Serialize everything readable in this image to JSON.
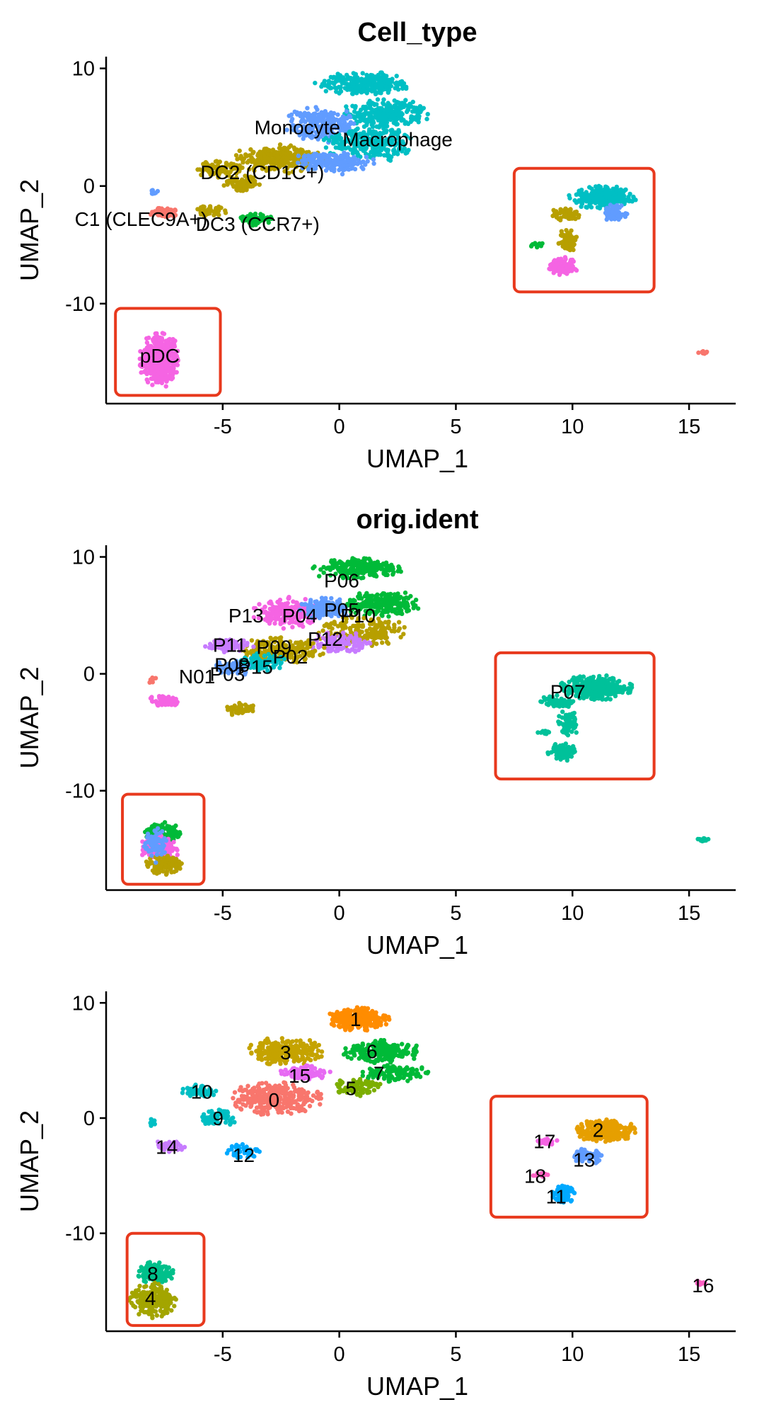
{
  "highlight_color": "#E8391D",
  "chart_data": [
    {
      "type": "scatter",
      "title": "Cell_type",
      "xlabel": "UMAP_1",
      "ylabel": "UMAP_2",
      "xlim": [
        -10,
        17
      ],
      "ylim": [
        -18.5,
        11
      ],
      "xticks": [
        -5,
        0,
        5,
        10,
        15
      ],
      "yticks": [
        10,
        0,
        -10
      ],
      "xtick_labels": [
        "-5",
        "0",
        "5",
        "10",
        "15"
      ],
      "ytick_labels": [
        "10",
        "0",
        "-10"
      ],
      "highlight_boxes": [
        {
          "x": [
            7.5,
            13.5
          ],
          "y": [
            -9,
            1.5
          ]
        },
        {
          "x": [
            -9.6,
            -5.1
          ],
          "y": [
            -17.8,
            -10.4
          ]
        }
      ],
      "labels": [
        {
          "text": "Monocyte",
          "x": -1.8,
          "y": 5
        },
        {
          "text": "Macrophage",
          "x": 2.5,
          "y": 4
        },
        {
          "text": "DC2 (CD1C+)",
          "x": -3.3,
          "y": 1.2
        },
        {
          "text": "C1 (CLEC9A+)",
          "x": -8.5,
          "y": -2.8
        },
        {
          "text": "DC3 (CCR7+)",
          "x": -3.5,
          "y": -3.2
        },
        {
          "text": "pDC",
          "x": -7.7,
          "y": -14.4
        }
      ],
      "clusters": [
        {
          "x": 1.0,
          "y": 8.7,
          "rx": 1.8,
          "ry": 0.9,
          "n": 260,
          "color": "#00BFC4"
        },
        {
          "x": 2.0,
          "y": 6.2,
          "rx": 1.7,
          "ry": 1.1,
          "n": 260,
          "color": "#00BFC4"
        },
        {
          "x": -0.8,
          "y": 5.2,
          "rx": 1.5,
          "ry": 1.4,
          "n": 240,
          "color": "#619CFF"
        },
        {
          "x": 1.3,
          "y": 3.6,
          "rx": 1.8,
          "ry": 1.4,
          "n": 260,
          "color": "#00BFC4"
        },
        {
          "x": -2.6,
          "y": 2.3,
          "rx": 1.8,
          "ry": 1.1,
          "n": 260,
          "color": "#B79F00"
        },
        {
          "x": -0.3,
          "y": 2.0,
          "rx": 1.6,
          "ry": 0.9,
          "n": 180,
          "color": "#619CFF"
        },
        {
          "x": -5.2,
          "y": 1.5,
          "rx": 1.0,
          "ry": 0.7,
          "n": 90,
          "color": "#B79F00"
        },
        {
          "x": -4.2,
          "y": 0.2,
          "rx": 0.8,
          "ry": 0.7,
          "n": 80,
          "color": "#B79F00"
        },
        {
          "x": -7.5,
          "y": -2.3,
          "rx": 0.6,
          "ry": 0.5,
          "n": 60,
          "color": "#F8766D"
        },
        {
          "x": -5.5,
          "y": -2.2,
          "rx": 0.6,
          "ry": 0.5,
          "n": 40,
          "color": "#B79F00"
        },
        {
          "x": -3.6,
          "y": -2.8,
          "rx": 0.7,
          "ry": 0.5,
          "n": 60,
          "color": "#00BA38"
        },
        {
          "x": -8.0,
          "y": -0.5,
          "rx": 0.2,
          "ry": 0.3,
          "n": 10,
          "color": "#619CFF"
        },
        {
          "x": 11.3,
          "y": -1.0,
          "rx": 1.3,
          "ry": 0.9,
          "n": 260,
          "color": "#00BFC4"
        },
        {
          "x": 11.8,
          "y": -2.3,
          "rx": 0.5,
          "ry": 0.7,
          "n": 70,
          "color": "#619CFF"
        },
        {
          "x": 9.7,
          "y": -2.4,
          "rx": 0.6,
          "ry": 0.6,
          "n": 60,
          "color": "#B79F00"
        },
        {
          "x": 9.8,
          "y": -4.6,
          "rx": 0.4,
          "ry": 1.0,
          "n": 60,
          "color": "#B79F00"
        },
        {
          "x": 8.5,
          "y": -5.0,
          "rx": 0.3,
          "ry": 0.2,
          "n": 12,
          "color": "#00BA38"
        },
        {
          "x": 9.6,
          "y": -6.8,
          "rx": 0.6,
          "ry": 0.7,
          "n": 110,
          "color": "#F564E3"
        },
        {
          "x": -7.7,
          "y": -14.8,
          "rx": 0.8,
          "ry": 2.1,
          "n": 380,
          "color": "#F564E3"
        },
        {
          "x": 15.6,
          "y": -14.1,
          "rx": 0.2,
          "ry": 0.15,
          "n": 10,
          "color": "#F8766D"
        }
      ]
    },
    {
      "type": "scatter",
      "title": "orig.ident",
      "xlabel": "UMAP_1",
      "ylabel": "UMAP_2",
      "xlim": [
        -10,
        17
      ],
      "ylim": [
        -18.5,
        11
      ],
      "xticks": [
        -5,
        0,
        5,
        10,
        15
      ],
      "yticks": [
        10,
        0,
        -10
      ],
      "xtick_labels": [
        "-5",
        "0",
        "5",
        "10",
        "15"
      ],
      "ytick_labels": [
        "10",
        "0",
        "-10"
      ],
      "highlight_boxes": [
        {
          "x": [
            6.7,
            13.5
          ],
          "y": [
            -9,
            1.8
          ]
        },
        {
          "x": [
            -9.3,
            -5.8
          ],
          "y": [
            -18,
            -10.3
          ]
        }
      ],
      "labels": [
        {
          "text": "P06",
          "x": 0.1,
          "y": 8.0
        },
        {
          "text": "P05",
          "x": 0.1,
          "y": 5.5
        },
        {
          "text": "P13",
          "x": -4.0,
          "y": 5.0
        },
        {
          "text": "P04",
          "x": -1.7,
          "y": 5.0
        },
        {
          "text": "P10",
          "x": 0.8,
          "y": 5.0
        },
        {
          "text": "P12",
          "x": -0.6,
          "y": 3.0
        },
        {
          "text": "P11",
          "x": -4.7,
          "y": 2.5
        },
        {
          "text": "P09",
          "x": -2.8,
          "y": 2.3
        },
        {
          "text": "P02",
          "x": -2.1,
          "y": 1.5
        },
        {
          "text": "P08",
          "x": -4.6,
          "y": 0.8
        },
        {
          "text": "P15",
          "x": -3.6,
          "y": 0.6
        },
        {
          "text": "N01",
          "x": -6.1,
          "y": -0.2
        },
        {
          "text": "P03",
          "x": -4.8,
          "y": 0.0
        },
        {
          "text": "P07",
          "x": 9.8,
          "y": -1.5
        }
      ],
      "clusters": [
        {
          "x": 0.8,
          "y": 9.0,
          "rx": 1.7,
          "ry": 0.8,
          "n": 240,
          "color": "#00BA38"
        },
        {
          "x": 1.8,
          "y": 6.0,
          "rx": 1.6,
          "ry": 1.0,
          "n": 220,
          "color": "#00BA38"
        },
        {
          "x": -2.2,
          "y": 5.2,
          "rx": 1.4,
          "ry": 1.2,
          "n": 200,
          "color": "#F564E3"
        },
        {
          "x": -0.6,
          "y": 5.6,
          "rx": 1.0,
          "ry": 0.9,
          "n": 120,
          "color": "#619CFF"
        },
        {
          "x": 1.0,
          "y": 3.6,
          "rx": 1.9,
          "ry": 1.2,
          "n": 200,
          "color": "#B79F00"
        },
        {
          "x": 0.0,
          "y": 2.6,
          "rx": 1.3,
          "ry": 0.9,
          "n": 120,
          "color": "#C77CFF"
        },
        {
          "x": -2.5,
          "y": 2.0,
          "rx": 1.7,
          "ry": 1.0,
          "n": 200,
          "color": "#B79F00"
        },
        {
          "x": -4.8,
          "y": 2.4,
          "rx": 1.0,
          "ry": 0.5,
          "n": 80,
          "color": "#C77CFF"
        },
        {
          "x": -3.4,
          "y": 1.0,
          "rx": 1.0,
          "ry": 0.7,
          "n": 80,
          "color": "#00BFC4"
        },
        {
          "x": -4.5,
          "y": 0.5,
          "rx": 0.8,
          "ry": 0.6,
          "n": 60,
          "color": "#619CFF"
        },
        {
          "x": -7.5,
          "y": -2.3,
          "rx": 0.6,
          "ry": 0.5,
          "n": 50,
          "color": "#F564E3"
        },
        {
          "x": -8.0,
          "y": -0.5,
          "rx": 0.2,
          "ry": 0.3,
          "n": 10,
          "color": "#F8766D"
        },
        {
          "x": -4.3,
          "y": -3.0,
          "rx": 0.6,
          "ry": 0.5,
          "n": 50,
          "color": "#B79F00"
        },
        {
          "x": 11.0,
          "y": -1.2,
          "rx": 1.4,
          "ry": 1.0,
          "n": 320,
          "color": "#00C19A"
        },
        {
          "x": 9.3,
          "y": -2.4,
          "rx": 0.7,
          "ry": 0.5,
          "n": 60,
          "color": "#00C19A"
        },
        {
          "x": 9.8,
          "y": -4.3,
          "rx": 0.4,
          "ry": 1.1,
          "n": 70,
          "color": "#00C19A"
        },
        {
          "x": 8.8,
          "y": -5.0,
          "rx": 0.3,
          "ry": 0.2,
          "n": 12,
          "color": "#00C19A"
        },
        {
          "x": 9.6,
          "y": -6.7,
          "rx": 0.6,
          "ry": 0.7,
          "n": 110,
          "color": "#00C19A"
        },
        {
          "x": -7.6,
          "y": -13.6,
          "rx": 0.7,
          "ry": 0.9,
          "n": 140,
          "color": "#00BA38"
        },
        {
          "x": -7.7,
          "y": -15.0,
          "rx": 0.8,
          "ry": 1.0,
          "n": 160,
          "color": "#F564E3"
        },
        {
          "x": -7.5,
          "y": -16.3,
          "rx": 0.7,
          "ry": 0.8,
          "n": 120,
          "color": "#B79F00"
        },
        {
          "x": -7.9,
          "y": -14.6,
          "rx": 0.5,
          "ry": 1.5,
          "n": 60,
          "color": "#619CFF"
        },
        {
          "x": 15.6,
          "y": -14.2,
          "rx": 0.25,
          "ry": 0.15,
          "n": 12,
          "color": "#00C19A"
        }
      ]
    },
    {
      "type": "scatter",
      "title": "",
      "xlabel": "UMAP_1",
      "ylabel": "UMAP_2",
      "xlim": [
        -10,
        17
      ],
      "ylim": [
        -18.5,
        11
      ],
      "xticks": [
        -5,
        0,
        5,
        10,
        15
      ],
      "yticks": [
        10,
        0,
        -10
      ],
      "xtick_labels": [
        "-5",
        "0",
        "5",
        "10",
        "15"
      ],
      "ytick_labels": [
        "10",
        "0",
        "-10"
      ],
      "highlight_boxes": [
        {
          "x": [
            6.5,
            13.2
          ],
          "y": [
            -8.6,
            1.9
          ]
        },
        {
          "x": [
            -9.1,
            -5.8
          ],
          "y": [
            -18.0,
            -10.0
          ]
        }
      ],
      "labels": [
        {
          "text": "1",
          "x": 0.7,
          "y": 8.6
        },
        {
          "text": "3",
          "x": -2.3,
          "y": 5.7
        },
        {
          "text": "6",
          "x": 1.4,
          "y": 5.8
        },
        {
          "text": "15",
          "x": -1.7,
          "y": 3.7
        },
        {
          "text": "7",
          "x": 1.7,
          "y": 3.9
        },
        {
          "text": "5",
          "x": 0.5,
          "y": 2.6
        },
        {
          "text": "10",
          "x": -5.9,
          "y": 2.3
        },
        {
          "text": "0",
          "x": -2.8,
          "y": 1.6
        },
        {
          "text": "9",
          "x": -5.2,
          "y": 0.0
        },
        {
          "text": "14",
          "x": -7.4,
          "y": -2.5
        },
        {
          "text": "12",
          "x": -4.1,
          "y": -3.2
        },
        {
          "text": "2",
          "x": 11.1,
          "y": -1.0
        },
        {
          "text": "17",
          "x": 8.8,
          "y": -2.0
        },
        {
          "text": "13",
          "x": 10.5,
          "y": -3.6
        },
        {
          "text": "18",
          "x": 8.4,
          "y": -5.0
        },
        {
          "text": "11",
          "x": 9.3,
          "y": -6.8
        },
        {
          "text": "8",
          "x": -8.0,
          "y": -13.5
        },
        {
          "text": "4",
          "x": -8.1,
          "y": -15.6
        },
        {
          "text": "16",
          "x": 15.6,
          "y": -14.5
        }
      ],
      "clusters": [
        {
          "x": 0.8,
          "y": 8.6,
          "rx": 1.2,
          "ry": 0.9,
          "n": 240,
          "color": "#FF8C00"
        },
        {
          "x": -2.3,
          "y": 5.8,
          "rx": 1.5,
          "ry": 1.1,
          "n": 240,
          "color": "#C5A300"
        },
        {
          "x": 1.8,
          "y": 5.8,
          "rx": 1.7,
          "ry": 0.9,
          "n": 220,
          "color": "#00BA38"
        },
        {
          "x": 2.4,
          "y": 3.9,
          "rx": 1.3,
          "ry": 0.7,
          "n": 120,
          "color": "#00BA38"
        },
        {
          "x": 0.7,
          "y": 2.7,
          "rx": 1.0,
          "ry": 0.7,
          "n": 90,
          "color": "#7CAE00"
        },
        {
          "x": -1.5,
          "y": 3.9,
          "rx": 1.0,
          "ry": 0.6,
          "n": 100,
          "color": "#E76BF3"
        },
        {
          "x": -2.7,
          "y": 1.7,
          "rx": 1.8,
          "ry": 1.3,
          "n": 300,
          "color": "#F8766D"
        },
        {
          "x": -6.0,
          "y": 2.3,
          "rx": 0.7,
          "ry": 0.6,
          "n": 60,
          "color": "#00BFC4"
        },
        {
          "x": -5.2,
          "y": 0.1,
          "rx": 0.8,
          "ry": 0.7,
          "n": 70,
          "color": "#00BFC4"
        },
        {
          "x": -7.3,
          "y": -2.4,
          "rx": 0.6,
          "ry": 0.5,
          "n": 50,
          "color": "#C77CFF"
        },
        {
          "x": -4.1,
          "y": -2.9,
          "rx": 0.7,
          "ry": 0.6,
          "n": 50,
          "color": "#00A9FF"
        },
        {
          "x": -8.0,
          "y": -0.4,
          "rx": 0.2,
          "ry": 0.3,
          "n": 10,
          "color": "#00BFC4"
        },
        {
          "x": 11.4,
          "y": -1.1,
          "rx": 1.2,
          "ry": 0.9,
          "n": 260,
          "color": "#E69F00"
        },
        {
          "x": 8.9,
          "y": -2.0,
          "rx": 0.4,
          "ry": 0.3,
          "n": 30,
          "color": "#F564E3"
        },
        {
          "x": 10.7,
          "y": -3.3,
          "rx": 0.7,
          "ry": 0.6,
          "n": 80,
          "color": "#619CFF"
        },
        {
          "x": 8.6,
          "y": -4.9,
          "rx": 0.3,
          "ry": 0.2,
          "n": 14,
          "color": "#FF61C3"
        },
        {
          "x": 9.6,
          "y": -6.6,
          "rx": 0.5,
          "ry": 0.7,
          "n": 90,
          "color": "#00A9FF"
        },
        {
          "x": -7.9,
          "y": -13.5,
          "rx": 0.8,
          "ry": 0.9,
          "n": 140,
          "color": "#00C08B"
        },
        {
          "x": -8.0,
          "y": -15.8,
          "rx": 0.9,
          "ry": 1.4,
          "n": 220,
          "color": "#A3A500"
        },
        {
          "x": 15.5,
          "y": -14.3,
          "rx": 0.2,
          "ry": 0.2,
          "n": 12,
          "color": "#FF61C3"
        }
      ]
    }
  ]
}
